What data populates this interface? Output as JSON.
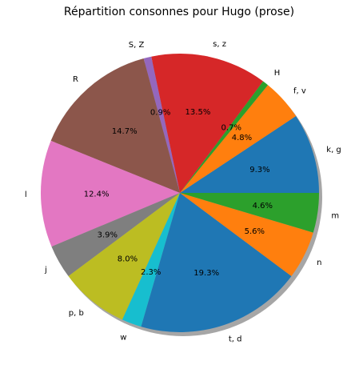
{
  "chart_data": {
    "type": "pie",
    "title": "Répartition consonnes pour Hugo (prose)",
    "slices": [
      {
        "label": "k, g",
        "pct_label": "9.3%",
        "value": 9.3,
        "color": "#1f77b4"
      },
      {
        "label": "f, v",
        "pct_label": "4.8%",
        "value": 4.8,
        "color": "#ff7f0e"
      },
      {
        "label": "H",
        "pct_label": "0.7%",
        "value": 0.7,
        "color": "#2ca02c"
      },
      {
        "label": "s, z",
        "pct_label": "13.5%",
        "value": 13.5,
        "color": "#d62728"
      },
      {
        "label": "S, Z",
        "pct_label": "0.9%",
        "value": 0.9,
        "color": "#9467bd"
      },
      {
        "label": "R",
        "pct_label": "14.7%",
        "value": 14.7,
        "color": "#8c564b"
      },
      {
        "label": "l",
        "pct_label": "12.4%",
        "value": 12.4,
        "color": "#e377c2"
      },
      {
        "label": "j",
        "pct_label": "3.9%",
        "value": 3.9,
        "color": "#7f7f7f"
      },
      {
        "label": "p, b",
        "pct_label": "8.0%",
        "value": 8.0,
        "color": "#bcbd22"
      },
      {
        "label": "w",
        "pct_label": "2.3%",
        "value": 2.3,
        "color": "#17becf"
      },
      {
        "label": "t, d",
        "pct_label": "19.3%",
        "value": 19.3,
        "color": "#1f77b4"
      },
      {
        "label": "n",
        "pct_label": "5.6%",
        "value": 5.6,
        "color": "#ff7f0e"
      },
      {
        "label": "m",
        "pct_label": "4.6%",
        "value": 4.6,
        "color": "#2ca02c"
      }
    ],
    "start_angle": "3 o'clock, counter-clockwise",
    "shadow": true,
    "legend": "none"
  }
}
